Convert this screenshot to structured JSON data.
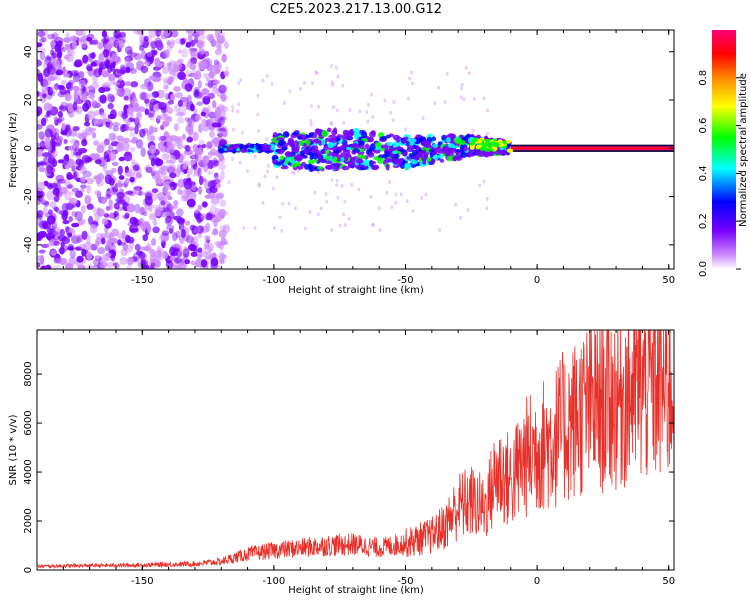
{
  "title": "C2E5.2023.217.13.00.G12",
  "colors": {
    "snr_line": "#e8302a",
    "axis": "#000000",
    "background": "#ffffff"
  },
  "chart_data": [
    {
      "type": "heatmap",
      "xlabel": "Height of straight line (km)",
      "ylabel": "Frequency (Hz)",
      "xlim": [
        -190,
        52
      ],
      "ylim": [
        -50,
        49
      ],
      "xticks": [
        -150,
        -100,
        -50,
        0,
        50
      ],
      "yticks": [
        -40,
        -20,
        0,
        20,
        40
      ],
      "colorbar": {
        "label": "Normalized spectral amplitude",
        "range": [
          0,
          1
        ],
        "ticks": [
          0.0,
          0.2,
          0.4,
          0.6,
          0.8
        ],
        "colormap": [
          "#ffffff",
          "#cc88ff",
          "#7700ff",
          "#0000ff",
          "#00ffff",
          "#00ff00",
          "#ffff00",
          "#ff8800",
          "#ff0000",
          "#ff0077"
        ]
      },
      "description_points": [
        {
          "x": -170,
          "noise_band": "broad",
          "freq_spread": [
            -50,
            49
          ]
        },
        {
          "x": -125,
          "noise_band": "broad",
          "freq_spread": [
            -50,
            49
          ]
        },
        {
          "x": -100,
          "freq_center": -3,
          "freq_spread": [
            -8,
            6
          ]
        },
        {
          "x": -75,
          "freq_center": 1,
          "freq_spread": [
            -9,
            8
          ]
        },
        {
          "x": -50,
          "freq_center": -2,
          "freq_spread": [
            -8,
            5
          ]
        },
        {
          "x": -25,
          "freq_center": 2,
          "freq_spread": [
            -3,
            5
          ]
        },
        {
          "x": 0,
          "freq_center": 0,
          "freq_spread": [
            -1,
            1
          ]
        },
        {
          "x": 50,
          "freq_center": 0,
          "freq_spread": [
            -1,
            1
          ]
        }
      ]
    },
    {
      "type": "line",
      "xlabel": "Height of straight line (km)",
      "ylabel": "SNR (10 * v/v)",
      "xlim": [
        -190,
        52
      ],
      "ylim": [
        0,
        9800
      ],
      "xticks": [
        -150,
        -100,
        -50,
        0,
        50
      ],
      "yticks": [
        0,
        2000,
        4000,
        6000,
        8000
      ],
      "series": [
        {
          "x": [
            -190,
            -170,
            -150,
            -130,
            -120,
            -110,
            -100,
            -90,
            -80,
            -70,
            -60,
            -50,
            -40,
            -35,
            -30,
            -25,
            -20,
            -15,
            -10,
            -5,
            0,
            5,
            10,
            15,
            20,
            25,
            30,
            35,
            40,
            45,
            52
          ],
          "values": [
            150,
            180,
            200,
            250,
            350,
            650,
            800,
            900,
            1000,
            1050,
            900,
            1100,
            1400,
            1800,
            2600,
            2800,
            2500,
            4000,
            3600,
            4500,
            5000,
            5200,
            5800,
            6200,
            6700,
            6800,
            7000,
            7300,
            7500,
            7600,
            7400
          ]
        }
      ]
    }
  ]
}
